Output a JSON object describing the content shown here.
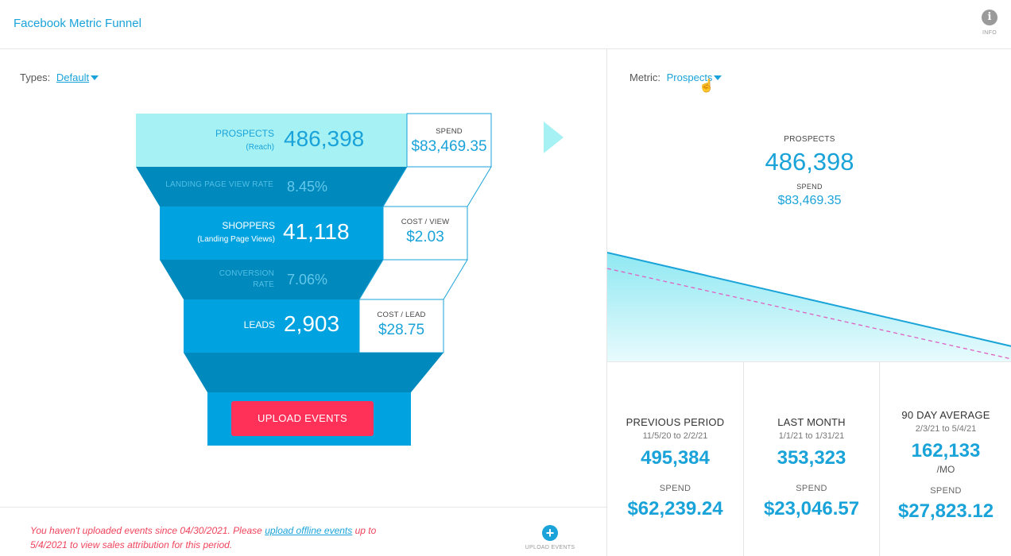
{
  "header": {
    "title": "Facebook Metric Funnel",
    "info_label": "INFO"
  },
  "left": {
    "types_label": "Types:",
    "types_value": "Default",
    "funnel": {
      "prospects": {
        "label": "PROSPECTS",
        "sublabel": "(Reach)",
        "value": "486,398",
        "side_label": "SPEND",
        "side_value": "$83,469.35"
      },
      "lpv_rate": {
        "label": "LANDING PAGE VIEW RATE",
        "value": "8.45%"
      },
      "shoppers": {
        "label": "SHOPPERS",
        "sublabel": "(Landing Page Views)",
        "value": "41,118",
        "side_label": "COST / VIEW",
        "side_value": "$2.03"
      },
      "conversion": {
        "label_line1": "CONVERSION",
        "label_line2": "RATE",
        "value": "7.06%"
      },
      "leads": {
        "label": "LEADS",
        "value": "2,903",
        "side_label": "COST / LEAD",
        "side_value": "$28.75"
      }
    },
    "upload_button": "UPLOAD EVENTS",
    "footer": {
      "msg_part1": "You haven't uploaded events since 04/30/2021. Please ",
      "msg_link": "upload offline events",
      "msg_part2": " up to 5/4/2021 to view sales attribution for this period.",
      "upload_label": "UPLOAD EVENTS"
    }
  },
  "right": {
    "metric_label": "Metric:",
    "metric_value": "Prospects",
    "summary": {
      "label": "PROSPECTS",
      "value": "486,398",
      "spend_label": "SPEND",
      "spend_value": "$83,469.35"
    },
    "stats": [
      {
        "title": "PREVIOUS PERIOD",
        "range": "11/5/20 to 2/2/21",
        "value": "495,384",
        "sub": "",
        "spend_label": "SPEND",
        "spend": "$62,239.24"
      },
      {
        "title": "LAST MONTH",
        "range": "1/1/21 to 1/31/21",
        "value": "353,323",
        "sub": "",
        "spend_label": "SPEND",
        "spend": "$23,046.57"
      },
      {
        "title": "90 DAY AVERAGE",
        "range": "2/3/21 to 5/4/21",
        "value": "162,133",
        "sub": "/MO",
        "spend_label": "SPEND",
        "spend": "$27,823.12"
      }
    ]
  },
  "colors": {
    "accent": "#1aa3d9",
    "funnel_top": "#a6f1f4",
    "funnel_mid": "#00a3e0",
    "funnel_dark": "#0089bc",
    "upload_red": "#ff3158",
    "error_text": "#f0445c",
    "trend_dashed": "#e060c0"
  }
}
